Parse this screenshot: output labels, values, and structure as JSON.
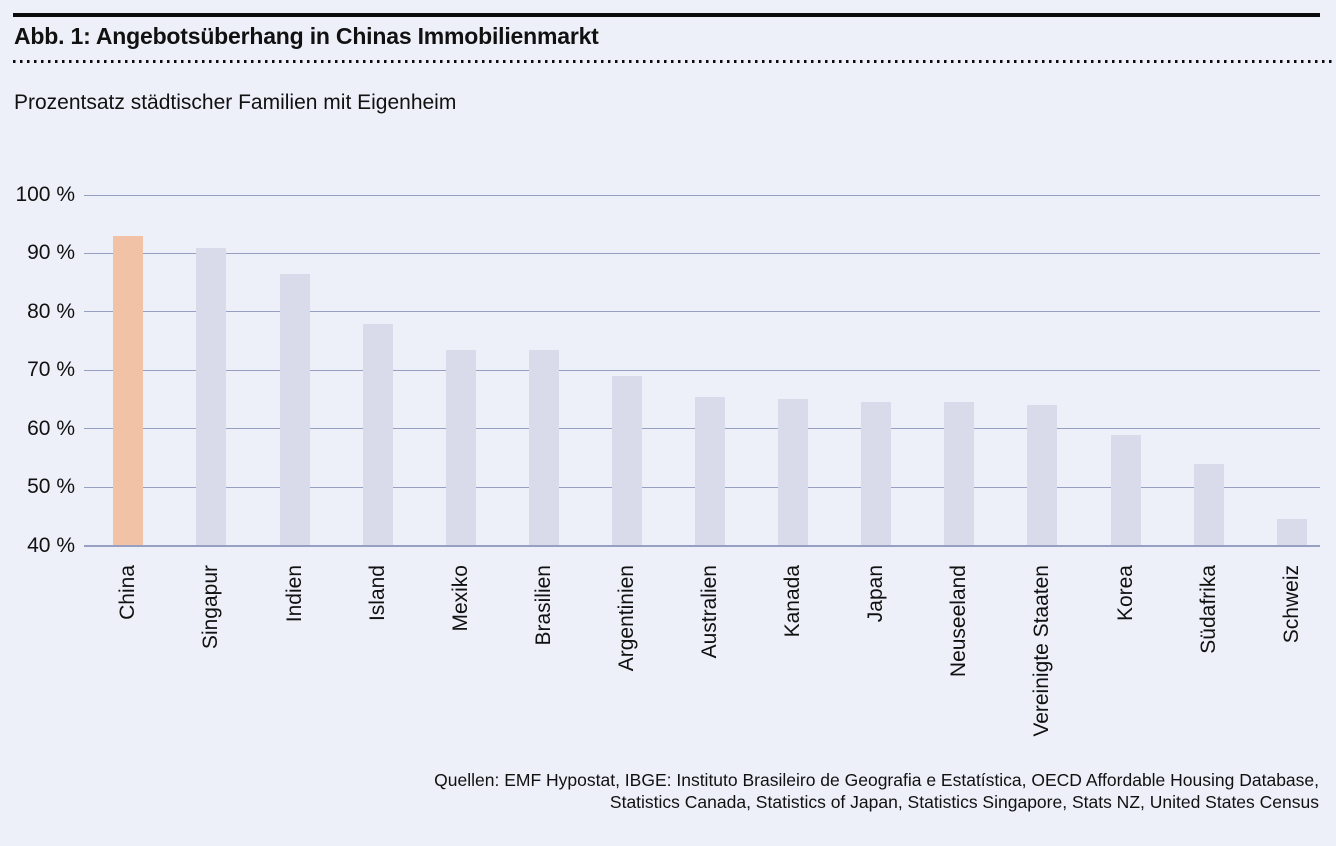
{
  "figure": {
    "title": "Abb. 1: Angebotsüberhang in Chinas Immobilienmarkt",
    "subtitle": "Prozentsatz städtischer Familien mit Eigenheim"
  },
  "chart_data": {
    "type": "bar",
    "title": "Angebotsüberhang in Chinas Immobilienmarkt",
    "subtitle": "Prozentsatz städtischer Familien mit Eigenheim",
    "categories": [
      "China",
      "Singapur",
      "Indien",
      "Island",
      "Mexiko",
      "Brasilien",
      "Argentinien",
      "Australien",
      "Kanada",
      "Japan",
      "Neuseeland",
      "Vereinigte Staaten",
      "Korea",
      "Südafrika",
      "Schweiz"
    ],
    "values": [
      93,
      91,
      86.5,
      78,
      73.5,
      73.5,
      69,
      65.5,
      65,
      64.5,
      64.5,
      64,
      59,
      54,
      44.5
    ],
    "unit": "%",
    "xlabel": "",
    "ylabel": "",
    "ylim": [
      40,
      100
    ],
    "yticks": [
      40,
      50,
      60,
      70,
      80,
      90,
      100
    ],
    "ytick_labels": [
      "40 %",
      "50 %",
      "60 %",
      "70 %",
      "80 %",
      "90 %",
      "100 %"
    ],
    "grid": "horizontal",
    "legend": "none",
    "highlight_index": 0,
    "colors": {
      "bar": "#d9daea",
      "highlight_bar": "#f1c2a5",
      "gridline": "#97a0c3",
      "background": "#edf0f9",
      "text": "#111111"
    }
  },
  "source": {
    "lines": [
      "Quellen: EMF Hypostat, IBGE: Instituto Brasileiro de Geografia e Estatística, OECD Affordable Housing Database,",
      "Statistics Canada, Statistics of Japan, Statistics Singapore, Stats NZ, United States Census"
    ]
  }
}
